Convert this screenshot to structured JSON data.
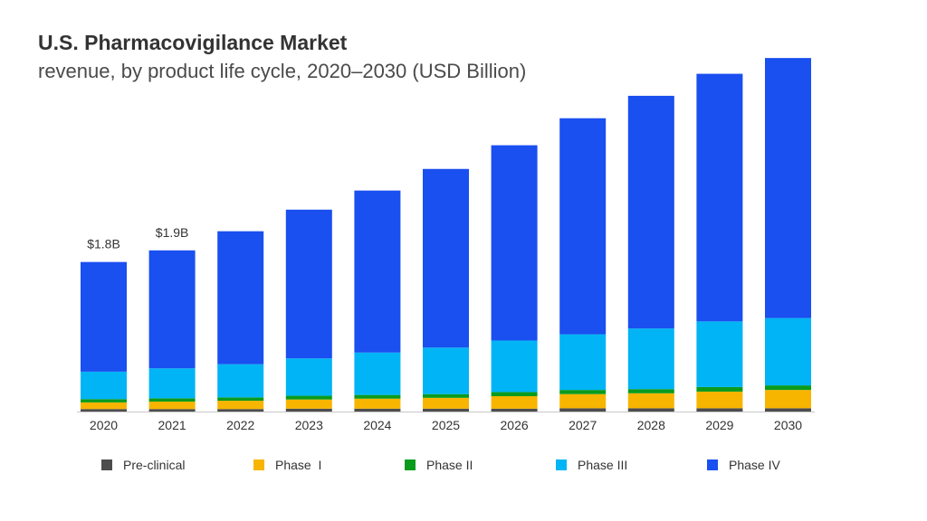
{
  "chart_data": {
    "type": "bar",
    "stacked": true,
    "title": "U.S. Pharmacovigilance Market",
    "subtitle": "revenue, by product life cycle, 2020–2030 (USD Billion)",
    "categories": [
      "2020",
      "2021",
      "2022",
      "2023",
      "2024",
      "2025",
      "2026",
      "2027",
      "2028",
      "2029",
      "2030"
    ],
    "series": [
      {
        "name": "Pre-clinical",
        "color": "#4d4d4d",
        "values": [
          0.03,
          0.03,
          0.03,
          0.035,
          0.035,
          0.035,
          0.035,
          0.04,
          0.04,
          0.04,
          0.04
        ]
      },
      {
        "name": "Phase  I",
        "color": "#f7b500",
        "values": [
          0.08,
          0.09,
          0.1,
          0.11,
          0.12,
          0.13,
          0.15,
          0.17,
          0.18,
          0.2,
          0.22
        ]
      },
      {
        "name": "Phase II",
        "color": "#0a9b1e",
        "values": [
          0.04,
          0.04,
          0.04,
          0.045,
          0.045,
          0.045,
          0.05,
          0.05,
          0.05,
          0.055,
          0.055
        ]
      },
      {
        "name": "Phase III",
        "color": "#00b4f5",
        "values": [
          0.33,
          0.36,
          0.4,
          0.45,
          0.51,
          0.56,
          0.62,
          0.67,
          0.73,
          0.79,
          0.81
        ]
      },
      {
        "name": "Phase IV",
        "color": "#1a4ff0",
        "values": [
          1.32,
          1.42,
          1.6,
          1.79,
          1.95,
          2.15,
          2.35,
          2.6,
          2.8,
          2.98,
          3.13
        ]
      }
    ],
    "data_labels": [
      {
        "category": "2020",
        "text": "$1.8B"
      },
      {
        "category": "2021",
        "text": "$1.9B"
      }
    ],
    "ylim": [
      0,
      4.3
    ],
    "grid": false,
    "legend_position": "bottom"
  }
}
